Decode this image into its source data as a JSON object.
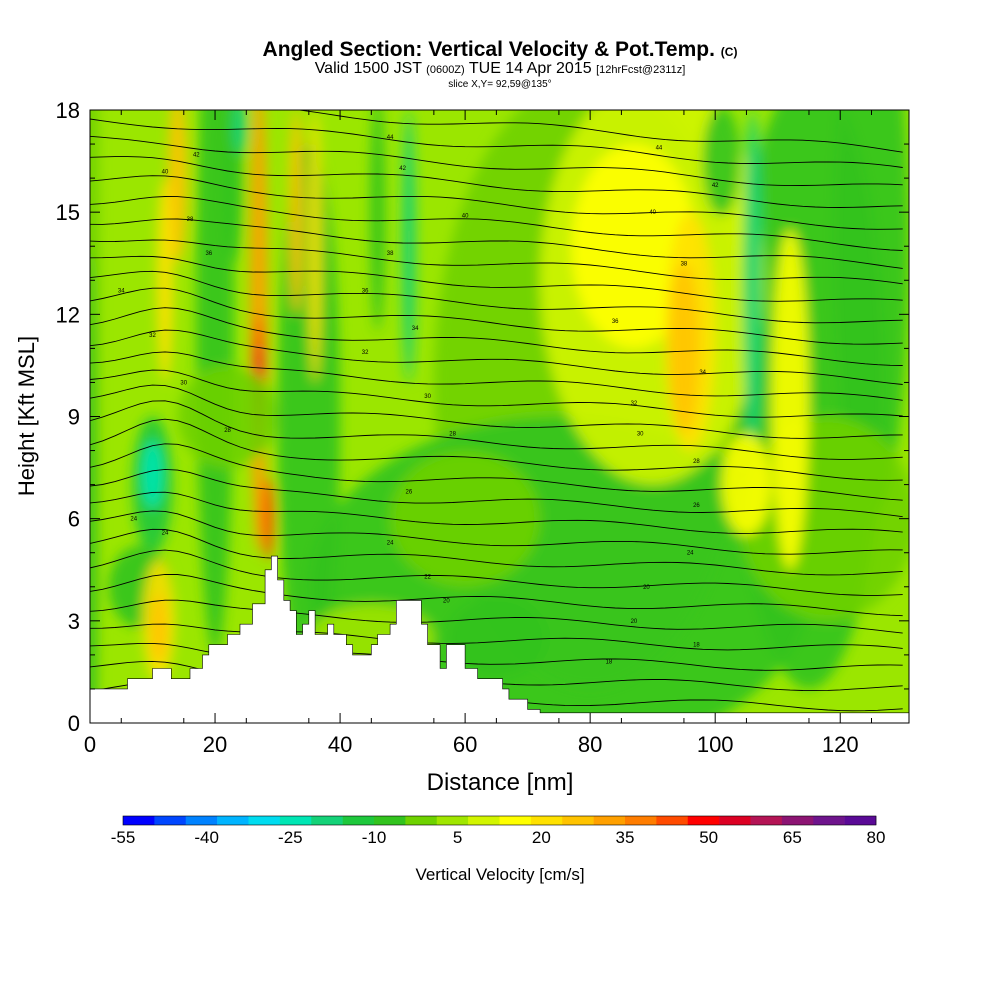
{
  "header": {
    "title_main": "Angled Section: Vertical Velocity & Pot.Temp.",
    "title_unit": "(C)",
    "valid_prefix": "Valid 1500 JST",
    "valid_utc": "(0600Z)",
    "valid_date": "TUE 14 Apr 2015",
    "forecast": "[12hrFcst@2311z]",
    "slice": "slice X,Y= 92,59@135°"
  },
  "chart_data": {
    "type": "heatmap",
    "xlabel": "Distance [nm]",
    "ylabel": "Height [Kft MSL]",
    "xlim": [
      0,
      131
    ],
    "ylim": [
      0,
      18
    ],
    "x_ticks": [
      0,
      20,
      40,
      60,
      80,
      100,
      120
    ],
    "y_ticks": [
      0,
      3,
      6,
      9,
      12,
      15,
      18
    ],
    "colorbar": {
      "label": "Vertical Velocity [cm/s]",
      "range": [
        -55,
        80
      ],
      "tick_values": [
        -55,
        -40,
        -25,
        -10,
        5,
        20,
        35,
        50,
        65,
        80
      ],
      "colors": [
        "#0000ff",
        "#0046ff",
        "#0082ff",
        "#00b4ff",
        "#00dcf0",
        "#00e6b4",
        "#14d278",
        "#1ec83c",
        "#32c31e",
        "#6ed200",
        "#a0e600",
        "#d2f500",
        "#ffff00",
        "#ffe100",
        "#ffc300",
        "#ffa000",
        "#ff7d00",
        "#ff4b00",
        "#ff0000",
        "#dc0023",
        "#b41455",
        "#8c1473",
        "#6e148c",
        "#5a0a96"
      ]
    },
    "terrain_profile": [
      [
        0,
        1
      ],
      [
        6,
        1
      ],
      [
        6,
        1.3
      ],
      [
        10,
        1.3
      ],
      [
        10,
        1.6
      ],
      [
        13,
        1.6
      ],
      [
        13,
        1.3
      ],
      [
        16,
        1.3
      ],
      [
        16,
        1.6
      ],
      [
        18,
        1.6
      ],
      [
        18,
        2
      ],
      [
        19,
        2
      ],
      [
        19,
        2.3
      ],
      [
        22,
        2.3
      ],
      [
        22,
        2.6
      ],
      [
        24,
        2.6
      ],
      [
        24,
        2.9
      ],
      [
        26,
        2.9
      ],
      [
        26,
        3.5
      ],
      [
        28,
        3.5
      ],
      [
        28,
        4.5
      ],
      [
        29,
        4.5
      ],
      [
        29,
        4.9
      ],
      [
        30,
        4.9
      ],
      [
        30,
        4.2
      ],
      [
        31,
        4.2
      ],
      [
        31,
        3.6
      ],
      [
        32,
        3.6
      ],
      [
        32,
        3.3
      ],
      [
        33,
        3.3
      ],
      [
        33,
        2.6
      ],
      [
        34,
        2.6
      ],
      [
        34,
        2.9
      ],
      [
        35,
        2.9
      ],
      [
        35,
        3.3
      ],
      [
        36,
        3.3
      ],
      [
        36,
        2.6
      ],
      [
        38,
        2.6
      ],
      [
        38,
        2.9
      ],
      [
        39,
        2.9
      ],
      [
        39,
        2.6
      ],
      [
        41,
        2.6
      ],
      [
        41,
        2.3
      ],
      [
        42,
        2.3
      ],
      [
        42,
        2
      ],
      [
        45,
        2
      ],
      [
        45,
        2.3
      ],
      [
        46,
        2.3
      ],
      [
        46,
        2.6
      ],
      [
        48,
        2.6
      ],
      [
        48,
        2.9
      ],
      [
        49,
        2.9
      ],
      [
        49,
        3.6
      ],
      [
        53,
        3.6
      ],
      [
        53,
        2.9
      ],
      [
        54,
        2.9
      ],
      [
        54,
        2.3
      ],
      [
        56,
        2.3
      ],
      [
        56,
        1.6
      ],
      [
        57,
        1.6
      ],
      [
        57,
        2.3
      ],
      [
        60,
        2.3
      ],
      [
        60,
        1.6
      ],
      [
        62,
        1.6
      ],
      [
        62,
        1.3
      ],
      [
        66,
        1.3
      ],
      [
        66,
        1
      ],
      [
        67,
        1
      ],
      [
        67,
        0.7
      ],
      [
        70,
        0.7
      ],
      [
        70,
        0.4
      ],
      [
        72,
        0.4
      ],
      [
        72,
        0.3
      ],
      [
        131,
        0.3
      ]
    ],
    "isentrope_labels": [
      {
        "text": "44",
        "x": 48,
        "y": 17.2
      },
      {
        "text": "44",
        "x": 91,
        "y": 16.9
      },
      {
        "text": "42",
        "x": 17,
        "y": 16.7
      },
      {
        "text": "40",
        "x": 12,
        "y": 16.2
      },
      {
        "text": "42",
        "x": 50,
        "y": 16.3
      },
      {
        "text": "42",
        "x": 100,
        "y": 15.8
      },
      {
        "text": "38",
        "x": 16,
        "y": 14.8
      },
      {
        "text": "40",
        "x": 60,
        "y": 14.9
      },
      {
        "text": "40",
        "x": 90,
        "y": 15
      },
      {
        "text": "36",
        "x": 19,
        "y": 13.8
      },
      {
        "text": "38",
        "x": 48,
        "y": 13.8
      },
      {
        "text": "38",
        "x": 95,
        "y": 13.5
      },
      {
        "text": "34",
        "x": 5,
        "y": 12.7
      },
      {
        "text": "36",
        "x": 44,
        "y": 12.7
      },
      {
        "text": "36",
        "x": 84,
        "y": 11.8
      },
      {
        "text": "32",
        "x": 10,
        "y": 11.4
      },
      {
        "text": "34",
        "x": 52,
        "y": 11.6
      },
      {
        "text": "32",
        "x": 44,
        "y": 10.9
      },
      {
        "text": "34",
        "x": 98,
        "y": 10.3
      },
      {
        "text": "30",
        "x": 15,
        "y": 10
      },
      {
        "text": "30",
        "x": 54,
        "y": 9.6
      },
      {
        "text": "32",
        "x": 87,
        "y": 9.4
      },
      {
        "text": "28",
        "x": 22,
        "y": 8.6
      },
      {
        "text": "30",
        "x": 88,
        "y": 8.5
      },
      {
        "text": "28",
        "x": 58,
        "y": 8.5
      },
      {
        "text": "28",
        "x": 97,
        "y": 7.7
      },
      {
        "text": "26",
        "x": 51,
        "y": 6.8
      },
      {
        "text": "26",
        "x": 97,
        "y": 6.4
      },
      {
        "text": "24",
        "x": 7,
        "y": 6
      },
      {
        "text": "24",
        "x": 12,
        "y": 5.6
      },
      {
        "text": "24",
        "x": 48,
        "y": 5.3
      },
      {
        "text": "24",
        "x": 96,
        "y": 5
      },
      {
        "text": "22",
        "x": 54,
        "y": 4.3
      },
      {
        "text": "20",
        "x": 57,
        "y": 3.6
      },
      {
        "text": "20",
        "x": 89,
        "y": 4
      },
      {
        "text": "20",
        "x": 87,
        "y": 3
      },
      {
        "text": "18",
        "x": 97,
        "y": 2.3
      },
      {
        "text": "18",
        "x": 83,
        "y": 1.8
      }
    ]
  }
}
